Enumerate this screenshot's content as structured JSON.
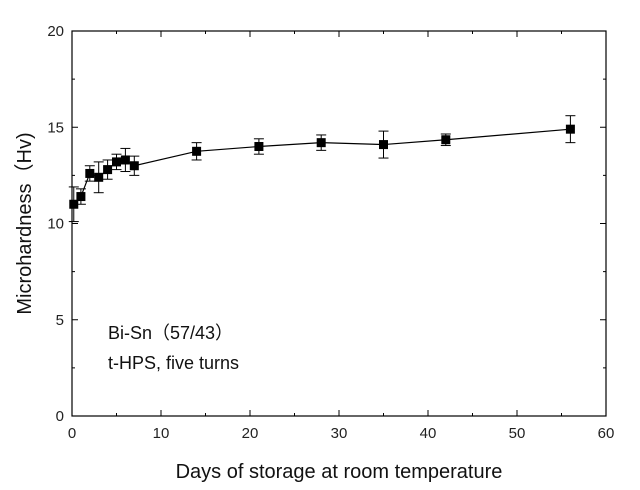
{
  "chart_data": {
    "type": "scatter",
    "xlabel": "Days of storage at room temperature",
    "ylabel": "Microhardness（Hv)",
    "xlim": [
      0,
      60
    ],
    "ylim": [
      0,
      20
    ],
    "xticks": [
      0,
      10,
      20,
      30,
      40,
      50,
      60
    ],
    "yticks": [
      0,
      5,
      10,
      15,
      20
    ],
    "grid": false,
    "annotations": [
      "Bi-Sn（57/43）",
      "t-HPS, five turns"
    ],
    "series": [
      {
        "marker": "square",
        "connected": true,
        "color": "#000000",
        "points": [
          {
            "x": 0.2,
            "y": 11.0,
            "err": 0.9
          },
          {
            "x": 1,
            "y": 11.4,
            "err": 0.4
          },
          {
            "x": 2,
            "y": 12.6,
            "err": 0.4
          },
          {
            "x": 3,
            "y": 12.4,
            "err": 0.8
          },
          {
            "x": 4,
            "y": 12.8,
            "err": 0.5
          },
          {
            "x": 5,
            "y": 13.2,
            "err": 0.4
          },
          {
            "x": 6,
            "y": 13.3,
            "err": 0.6
          },
          {
            "x": 7,
            "y": 13.0,
            "err": 0.5
          },
          {
            "x": 14,
            "y": 13.75,
            "err": 0.45
          },
          {
            "x": 21,
            "y": 14.0,
            "err": 0.4
          },
          {
            "x": 28,
            "y": 14.2,
            "err": 0.4
          },
          {
            "x": 35,
            "y": 14.1,
            "err": 0.7
          },
          {
            "x": 42,
            "y": 14.35,
            "err": 0.3
          },
          {
            "x": 56,
            "y": 14.9,
            "err": 0.7
          }
        ]
      }
    ]
  }
}
